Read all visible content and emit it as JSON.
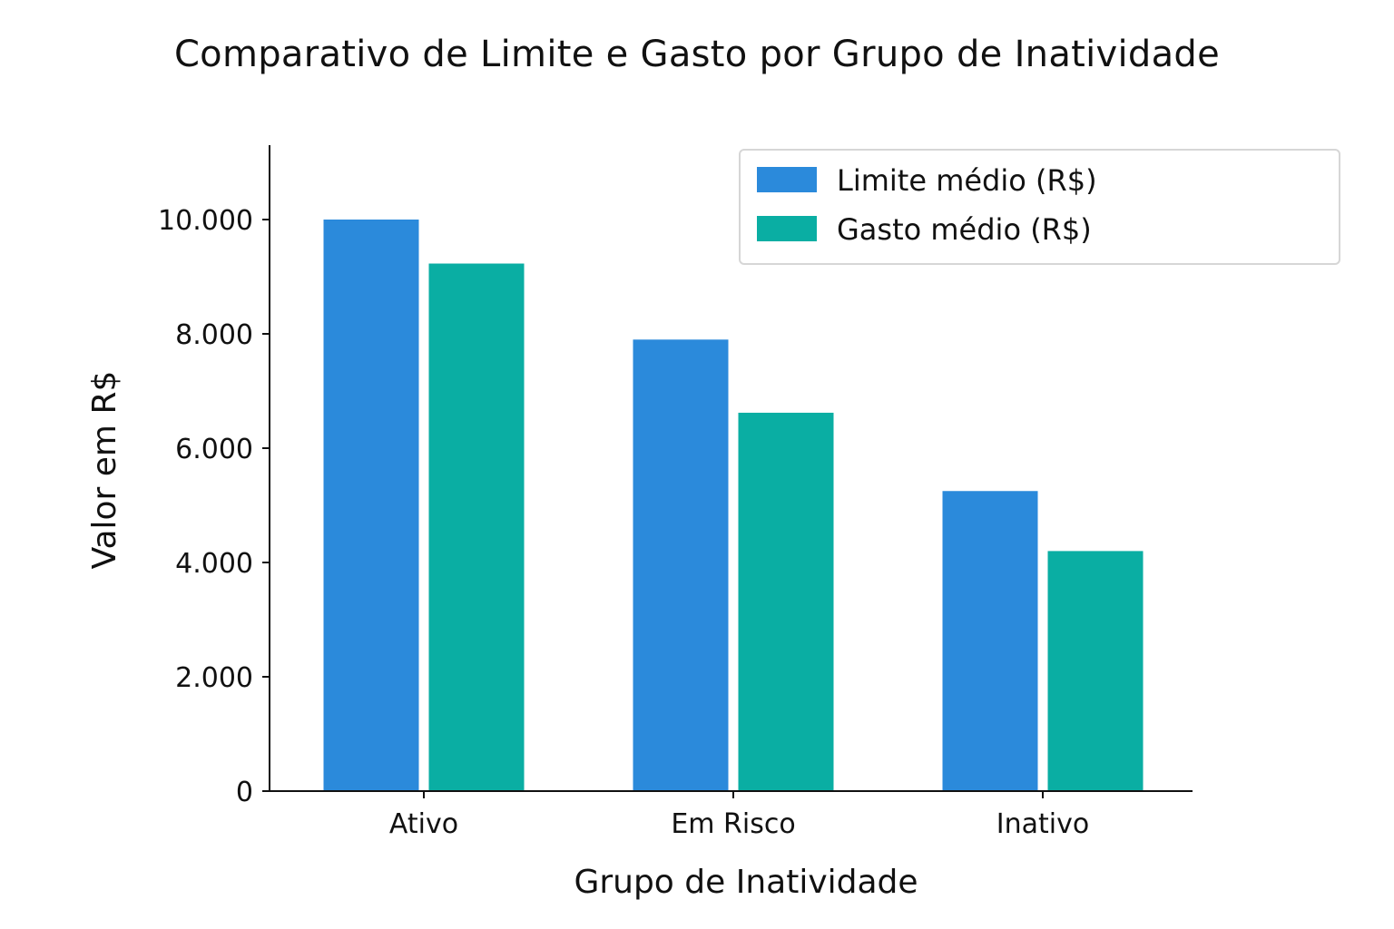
{
  "chart_data": {
    "type": "bar",
    "title": "Comparativo de Limite e Gasto por Grupo de Inatividade",
    "xlabel": "Grupo de Inatividade",
    "ylabel": "Valor em R$",
    "categories": [
      "Ativo",
      "Em Risco",
      "Inativo"
    ],
    "series": [
      {
        "name": "Limite médio (R$)",
        "values": [
          10000,
          7900,
          5250
        ],
        "color": "#2B8ADB"
      },
      {
        "name": "Gasto médio (R$)",
        "values": [
          9230,
          6620,
          4200
        ],
        "color": "#0AAEA3"
      }
    ],
    "ylim": [
      0,
      11300
    ],
    "yticks": [
      0,
      2000,
      4000,
      6000,
      8000,
      10000
    ],
    "ytick_labels": [
      "0",
      "2.000",
      "4.000",
      "6.000",
      "8.000",
      "10.000"
    ],
    "grid": false,
    "legend": "top-right"
  }
}
